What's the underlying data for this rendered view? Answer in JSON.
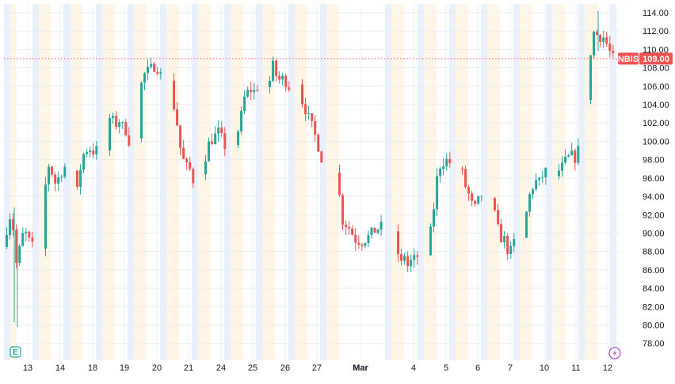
{
  "symbol": "NBIS",
  "last_price_label": "109.00",
  "colors": {
    "up": "#26a69a",
    "down": "#ef5350",
    "grid": "#f0f3fa",
    "session_pre": "#fff3e0",
    "session_post": "#e3ebfb",
    "price_line": "#ef5350",
    "text": "#131722"
  },
  "icons": {
    "earnings": "earnings-e-icon",
    "dividend": "lightning-icon"
  },
  "badges": {
    "earnings_letter": "E"
  },
  "chart_data": {
    "type": "candlestick",
    "title": "",
    "xlabel": "",
    "ylabel": "",
    "ylim": [
      76.5,
      114.8
    ],
    "y_ticks": [
      78,
      80,
      82,
      84,
      86,
      88,
      90,
      92,
      94,
      96,
      98,
      100,
      102,
      104,
      106,
      108,
      110,
      112,
      114
    ],
    "y_tick_labels": [
      "78.00",
      "80.00",
      "82.00",
      "84.00",
      "86.00",
      "88.00",
      "90.00",
      "92.00",
      "94.00",
      "96.00",
      "98.00",
      "100.00",
      "102.00",
      "104.00",
      "106.00",
      "108.00",
      "110.00",
      "112.00",
      "114.00"
    ],
    "x_tick_labels": [
      "13",
      "14",
      "18",
      "19",
      "20",
      "21",
      "24",
      "25",
      "26",
      "27",
      "Mar",
      "4",
      "5",
      "6",
      "7",
      "10",
      "11",
      "12"
    ],
    "last_price": 109.0,
    "days": [
      {
        "label": "13",
        "points": [
          88.5,
          91.0,
          92.6,
          86.5,
          88.4,
          90.4,
          89.3,
          88.5
        ]
      },
      {
        "label": "14",
        "points": [
          88.3,
          95.2,
          97.4,
          96.6,
          95.5,
          96.0,
          96.7,
          97.2
        ]
      },
      {
        "label": "18",
        "points": [
          96.8,
          94.5,
          97.1,
          98.6,
          99.1,
          99.2,
          98.9,
          99.0
        ]
      },
      {
        "label": "19",
        "points": [
          99.0,
          102.5,
          102.2,
          101.9,
          102.3,
          101.6,
          101.2,
          100.1
        ]
      },
      {
        "label": "20",
        "points": [
          100.3,
          106.2,
          107.3,
          107.6,
          107.9,
          108.2,
          108.0,
          107.2
        ]
      },
      {
        "label": "21",
        "points": [
          106.6,
          103.8,
          101.9,
          99.3,
          97.9,
          97.2,
          96.9,
          95.8
        ]
      },
      {
        "label": "24",
        "points": [
          96.4,
          98.4,
          99.7,
          100.2,
          100.6,
          101.0,
          100.3,
          99.5
        ]
      },
      {
        "label": "25",
        "points": [
          99.6,
          101.2,
          102.8,
          104.7,
          105.3,
          105.6,
          105.4,
          105.9
        ]
      },
      {
        "label": "26",
        "points": [
          105.9,
          106.6,
          108.2,
          107.2,
          106.7,
          106.8,
          106.5,
          106.0
        ]
      },
      {
        "label": "27",
        "points": [
          106.2,
          104.4,
          103.5,
          102.5,
          101.6,
          100.6,
          99.5,
          98.2
        ]
      },
      {
        "label": "Mar",
        "points": [
          96.6,
          91.4,
          90.6,
          89.3,
          89.1,
          89.6,
          90.3,
          90.7
        ]
      },
      {
        "label": "4",
        "points": [
          90.2,
          87.8,
          86.6,
          87.7,
          86.4,
          86.9,
          87.1,
          87.5
        ]
      },
      {
        "label": "5",
        "points": [
          87.6,
          90.1,
          92.8,
          95.9,
          97.4,
          97.8,
          97.9,
          97.7
        ]
      },
      {
        "label": "6",
        "points": [
          97.0,
          96.5,
          95.1,
          94.2,
          93.1,
          92.7,
          93.5,
          94.2
        ]
      },
      {
        "label": "7",
        "points": [
          93.8,
          92.0,
          90.4,
          89.5,
          89.3,
          88.2,
          88.0,
          89.0
        ]
      },
      {
        "label": "10",
        "points": [
          89.5,
          92.2,
          94.1,
          95.1,
          95.6,
          95.5,
          96.2,
          96.7
        ]
      },
      {
        "label": "11",
        "points": [
          96.2,
          96.8,
          97.2,
          97.8,
          98.2,
          98.4,
          98.2,
          99.0
        ]
      },
      {
        "label": "12",
        "points": [
          104.5,
          110.5,
          112.3,
          111.2,
          111.6,
          110.9,
          109.8,
          109.0
        ]
      }
    ]
  }
}
